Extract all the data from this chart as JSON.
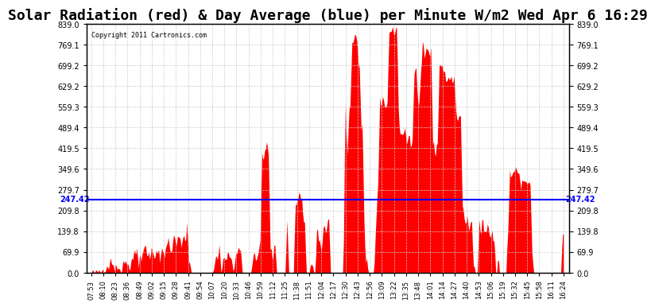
{
  "title": "Solar Radiation (red) & Day Average (blue) per Minute W/m2 Wed Apr 6 16:29",
  "copyright": "Copyright 2011 Cartronics.com",
  "y_min": 0.0,
  "y_max": 839.0,
  "y_ticks": [
    0.0,
    69.9,
    139.8,
    209.8,
    279.7,
    349.6,
    419.5,
    489.4,
    559.3,
    629.2,
    699.2,
    769.1,
    839.0
  ],
  "avg_line": 247.42,
  "avg_label": "247.42",
  "fill_color": "#FF0000",
  "line_color": "#0000FF",
  "background_color": "#FFFFFF",
  "grid_color": "#CCCCCC",
  "title_fontsize": 13,
  "x_labels": [
    "07:53",
    "08:10",
    "08:23",
    "08:36",
    "08:49",
    "09:02",
    "09:15",
    "09:28",
    "09:41",
    "09:54",
    "10:07",
    "10:20",
    "10:33",
    "10:46",
    "10:59",
    "11:12",
    "11:25",
    "11:38",
    "11:51",
    "12:04",
    "12:17",
    "12:30",
    "12:43",
    "12:56",
    "13:09",
    "13:22",
    "13:35",
    "13:48",
    "14:01",
    "14:14",
    "14:27",
    "14:40",
    "14:53",
    "15:06",
    "15:19",
    "15:32",
    "15:45",
    "15:58",
    "16:11",
    "16:24"
  ]
}
